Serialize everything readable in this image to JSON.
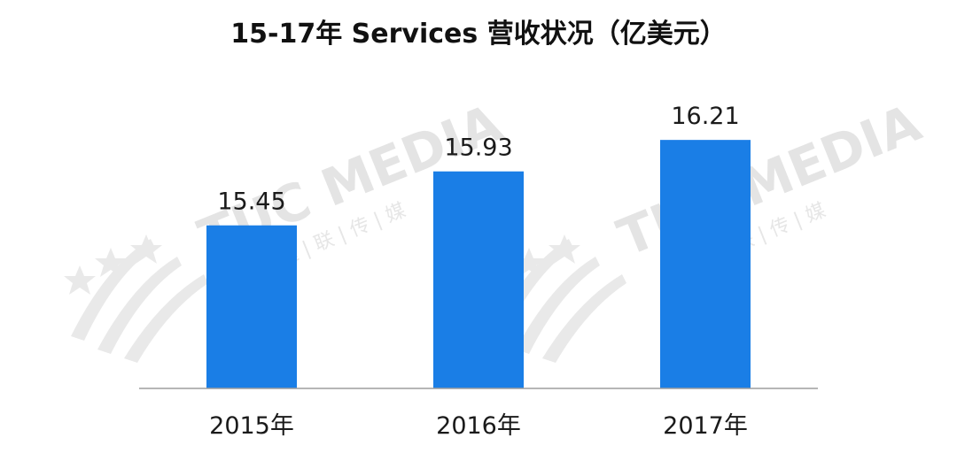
{
  "chart_data": {
    "type": "bar",
    "title": "15-17年 Services 营收状况（亿美元）",
    "categories": [
      "2015年",
      "2016年",
      "2017年"
    ],
    "values": [
      15.45,
      15.93,
      16.21
    ],
    "value_labels": [
      "15.45",
      "15.93",
      "16.21"
    ],
    "xlabel": "",
    "ylabel": "",
    "ylim": [
      14.0,
      16.4
    ],
    "grid": false,
    "legend": "none",
    "colors": {
      "bar": "#1a7ee6",
      "axis": "#9e9e9e"
    }
  },
  "watermark": {
    "brand": "TUC MEDIA",
    "sub": "运 | 联 | 传 | 媒",
    "logo_icon": "star-swoosh-logo"
  }
}
